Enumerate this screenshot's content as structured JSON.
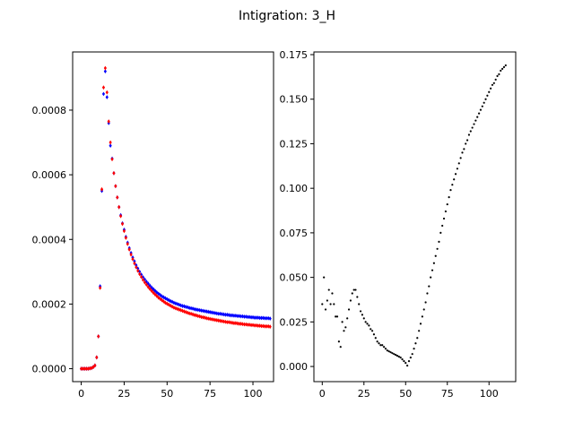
{
  "figure": {
    "title": "Intigration: 3_H"
  },
  "chart_data": [
    {
      "type": "scatter",
      "title": "",
      "xlabel": "",
      "ylabel": "",
      "xlim": [
        -5,
        112
      ],
      "ylim": [
        -4e-05,
        0.00098
      ],
      "grid": false,
      "xticks": [
        0,
        25,
        50,
        75,
        100
      ],
      "yticks": [
        0.0,
        0.0002,
        0.0004,
        0.0006,
        0.0008
      ],
      "ytick_labels": [
        "0.0000",
        "0.0002",
        "0.0004",
        "0.0006",
        "0.0008"
      ],
      "series": [
        {
          "color": "#0000ff",
          "x": [
            0,
            1,
            2,
            3,
            4,
            5,
            6,
            7,
            8,
            9,
            10,
            11,
            12,
            13,
            14,
            15,
            16,
            17,
            18,
            19,
            20,
            21,
            22,
            23,
            24,
            25,
            26,
            27,
            28,
            29,
            30,
            31,
            32,
            33,
            34,
            35,
            36,
            37,
            38,
            39,
            40,
            41,
            42,
            43,
            44,
            45,
            46,
            47,
            48,
            49,
            50,
            51,
            52,
            53,
            54,
            55,
            56,
            57,
            58,
            59,
            60,
            61,
            62,
            63,
            64,
            65,
            66,
            67,
            68,
            69,
            70,
            71,
            72,
            73,
            74,
            75,
            76,
            77,
            78,
            79,
            80,
            81,
            82,
            83,
            84,
            85,
            86,
            87,
            88,
            89,
            90,
            91,
            92,
            93,
            94,
            95,
            96,
            97,
            98,
            99,
            100,
            101,
            102,
            103,
            104,
            105,
            106,
            107,
            108,
            109,
            110
          ],
          "y": [
            0.0,
            0.0,
            0.0,
            0.0,
            0.0,
            1e-06,
            2e-06,
            5e-06,
            1e-05,
            3.5e-05,
            0.0001,
            0.000255,
            0.00055,
            0.00085,
            0.00092,
            0.00084,
            0.00076,
            0.00069,
            0.00065,
            0.000605,
            0.000565,
            0.00053,
            0.0005,
            0.000475,
            0.00045,
            0.00043,
            0.000408,
            0.00039,
            0.000373,
            0.000358,
            0.000344,
            0.000332,
            0.00032,
            0.00031,
            0.0003,
            0.000291,
            0.000283,
            0.000276,
            0.000269,
            0.000263,
            0.000257,
            0.000251,
            0.000246,
            0.000241,
            0.000236,
            0.000232,
            0.000228,
            0.000224,
            0.000221,
            0.000218,
            0.000215,
            0.000212,
            0.000209,
            0.000207,
            0.000204,
            0.000202,
            0.0002,
            0.000198,
            0.000196,
            0.000194,
            0.000193,
            0.000191,
            0.00019,
            0.000188,
            0.000187,
            0.000186,
            0.000184,
            0.000183,
            0.000182,
            0.000181,
            0.00018,
            0.000179,
            0.000178,
            0.000177,
            0.000176,
            0.000175,
            0.000174,
            0.000173,
            0.000172,
            0.000171,
            0.00017,
            0.00017,
            0.000169,
            0.000168,
            0.000167,
            0.000167,
            0.000166,
            0.000165,
            0.000165,
            0.000164,
            0.000164,
            0.000163,
            0.000163,
            0.000162,
            0.000162,
            0.000161,
            0.000161,
            0.00016,
            0.00016,
            0.000159,
            0.000159,
            0.000158,
            0.000158,
            0.000158,
            0.000157,
            0.000157,
            0.000157,
            0.000156,
            0.000156,
            0.000156,
            0.000155
          ]
        },
        {
          "color": "#ff0000",
          "x": [
            0,
            1,
            2,
            3,
            4,
            5,
            6,
            7,
            8,
            9,
            10,
            11,
            12,
            13,
            14,
            15,
            16,
            17,
            18,
            19,
            20,
            21,
            22,
            23,
            24,
            25,
            26,
            27,
            28,
            29,
            30,
            31,
            32,
            33,
            34,
            35,
            36,
            37,
            38,
            39,
            40,
            41,
            42,
            43,
            44,
            45,
            46,
            47,
            48,
            49,
            50,
            51,
            52,
            53,
            54,
            55,
            56,
            57,
            58,
            59,
            60,
            61,
            62,
            63,
            64,
            65,
            66,
            67,
            68,
            69,
            70,
            71,
            72,
            73,
            74,
            75,
            76,
            77,
            78,
            79,
            80,
            81,
            82,
            83,
            84,
            85,
            86,
            87,
            88,
            89,
            90,
            91,
            92,
            93,
            94,
            95,
            96,
            97,
            98,
            99,
            100,
            101,
            102,
            103,
            104,
            105,
            106,
            107,
            108,
            109,
            110
          ],
          "y": [
            0.0,
            0.0,
            0.0,
            0.0,
            0.0,
            1e-06,
            2e-06,
            5e-06,
            1e-05,
            3.5e-05,
            0.0001,
            0.00025,
            0.000555,
            0.00087,
            0.00093,
            0.000855,
            0.000765,
            0.0007,
            0.000648,
            0.000605,
            0.000565,
            0.00053,
            0.0005,
            0.000472,
            0.000448,
            0.000426,
            0.000405,
            0.000386,
            0.000369,
            0.000353,
            0.000339,
            0.000326,
            0.000314,
            0.000303,
            0.000293,
            0.000284,
            0.000275,
            0.000267,
            0.00026,
            0.000253,
            0.000247,
            0.000241,
            0.000235,
            0.00023,
            0.000225,
            0.00022,
            0.000216,
            0.000212,
            0.000208,
            0.000204,
            0.000201,
            0.000198,
            0.000195,
            0.000192,
            0.000189,
            0.000187,
            0.000185,
            0.000183,
            0.000181,
            0.000179,
            0.000177,
            0.000175,
            0.000173,
            0.000171,
            0.00017,
            0.000168,
            0.000166,
            0.000165,
            0.000163,
            0.000162,
            0.00016,
            0.000159,
            0.000158,
            0.000156,
            0.000155,
            0.000154,
            0.000153,
            0.000152,
            0.000151,
            0.00015,
            0.000149,
            0.000148,
            0.000147,
            0.000146,
            0.000145,
            0.000144,
            0.000144,
            0.000143,
            0.000142,
            0.000141,
            0.000141,
            0.00014,
            0.000139,
            0.000139,
            0.000138,
            0.000137,
            0.000137,
            0.000136,
            0.000136,
            0.000135,
            0.000135,
            0.000134,
            0.000134,
            0.000133,
            0.000133,
            0.000132,
            0.000132,
            0.000131,
            0.000131,
            0.000131,
            0.00013
          ]
        }
      ]
    },
    {
      "type": "scatter",
      "title": "",
      "xlabel": "",
      "ylabel": "",
      "xlim": [
        -5,
        116
      ],
      "ylim": [
        -0.0085,
        0.1765
      ],
      "grid": false,
      "xticks": [
        0,
        25,
        50,
        75,
        100
      ],
      "yticks": [
        0.0,
        0.025,
        0.05,
        0.075,
        0.1,
        0.125,
        0.15,
        0.175
      ],
      "ytick_labels": [
        "0.000",
        "0.025",
        "0.050",
        "0.075",
        "0.100",
        "0.125",
        "0.150",
        "0.175"
      ],
      "series": [
        {
          "color": "#000000",
          "x": [
            0,
            1,
            2,
            3,
            4,
            5,
            6,
            7,
            8,
            9,
            10,
            11,
            12,
            13,
            14,
            15,
            16,
            17,
            18,
            19,
            20,
            21,
            22,
            23,
            24,
            25,
            26,
            27,
            28,
            29,
            30,
            31,
            32,
            33,
            34,
            35,
            36,
            37,
            38,
            39,
            40,
            41,
            42,
            43,
            44,
            45,
            46,
            47,
            48,
            49,
            50,
            51,
            52,
            53,
            54,
            55,
            56,
            57,
            58,
            59,
            60,
            61,
            62,
            63,
            64,
            65,
            66,
            67,
            68,
            69,
            70,
            71,
            72,
            73,
            74,
            75,
            76,
            77,
            78,
            79,
            80,
            81,
            82,
            83,
            84,
            85,
            86,
            87,
            88,
            89,
            90,
            91,
            92,
            93,
            94,
            95,
            96,
            97,
            98,
            99,
            100,
            101,
            102,
            103,
            104,
            105,
            106,
            107,
            108,
            109,
            110
          ],
          "y": [
            0.035,
            0.05,
            0.032,
            0.037,
            0.043,
            0.035,
            0.041,
            0.035,
            0.028,
            0.028,
            0.014,
            0.011,
            0.025,
            0.02,
            0.022,
            0.027,
            0.032,
            0.037,
            0.041,
            0.043,
            0.043,
            0.039,
            0.035,
            0.031,
            0.029,
            0.027,
            0.025,
            0.024,
            0.023,
            0.021,
            0.02,
            0.018,
            0.016,
            0.014,
            0.013,
            0.012,
            0.012,
            0.011,
            0.01,
            0.009,
            0.0085,
            0.008,
            0.0075,
            0.007,
            0.0065,
            0.006,
            0.0055,
            0.005,
            0.004,
            0.003,
            0.002,
            0.0005,
            0.003,
            0.005,
            0.007,
            0.01,
            0.013,
            0.016,
            0.02,
            0.024,
            0.028,
            0.032,
            0.036,
            0.041,
            0.045,
            0.05,
            0.054,
            0.058,
            0.062,
            0.066,
            0.07,
            0.075,
            0.079,
            0.083,
            0.087,
            0.091,
            0.095,
            0.099,
            0.102,
            0.105,
            0.108,
            0.111,
            0.114,
            0.117,
            0.12,
            0.122,
            0.125,
            0.127,
            0.13,
            0.132,
            0.134,
            0.136,
            0.138,
            0.14,
            0.142,
            0.144,
            0.146,
            0.148,
            0.15,
            0.152,
            0.154,
            0.156,
            0.158,
            0.159,
            0.161,
            0.163,
            0.164,
            0.166,
            0.167,
            0.168,
            0.169
          ]
        }
      ]
    }
  ]
}
